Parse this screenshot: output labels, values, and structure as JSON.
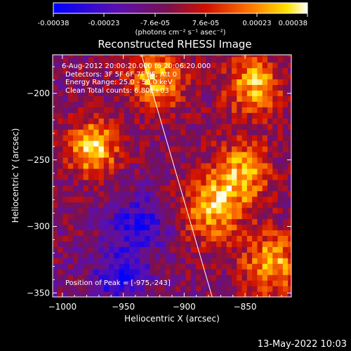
{
  "colorbar": {
    "ticks": [
      "-0.00038",
      "-0.00023",
      "-7.6e-05",
      "7.6e-05",
      "0.00023",
      "0.00038"
    ],
    "units_label": "(photons cm⁻² s⁻¹ asec⁻²)",
    "colormap": "blue-purple-red-yellow-white"
  },
  "title": "Reconstructed RHESSI Image",
  "annotations": {
    "time_range": "6-Aug-2012 20:00:20.000 to 20:06:20.000",
    "detectors": "Detectors: 3F 5F 6F 7F 8F, Att 0",
    "energy_range": "Energy Range: 25.0 - 50.0 keV",
    "algorithm": "Clean    Total counts: 6.80E+03",
    "peak_position": "Position of Peak = [-975,-243]"
  },
  "footer_timestamp": "13-May-2022 10:03",
  "chart_data": {
    "type": "heatmap",
    "title": "Reconstructed RHESSI Image",
    "xlabel": "Heliocentric X (arcsec)",
    "ylabel": "Heliocentric Y (arcsec)",
    "xlim": [
      -1008,
      -812
    ],
    "ylim": [
      -353,
      -171
    ],
    "xticks": [
      -1000,
      -950,
      -900,
      -850
    ],
    "yticks": [
      -200,
      -250,
      -300,
      -350
    ],
    "colorbar_range": [
      -0.00038,
      0.00038
    ],
    "peak_position": [
      -975,
      -243
    ],
    "limb_line": [
      [
        -935,
        -171
      ],
      [
        -877,
        -353
      ]
    ],
    "bright_sources": [
      {
        "x": -977,
        "y": -243
      },
      {
        "x": -830,
        "y": -330
      },
      {
        "x": -845,
        "y": -195
      },
      {
        "x": -855,
        "y": -262
      },
      {
        "x": -925,
        "y": -190
      },
      {
        "x": -880,
        "y": -290
      }
    ],
    "dim_region": [
      {
        "x": -940,
        "y": -300
      },
      {
        "x": -955,
        "y": -340
      }
    ]
  }
}
